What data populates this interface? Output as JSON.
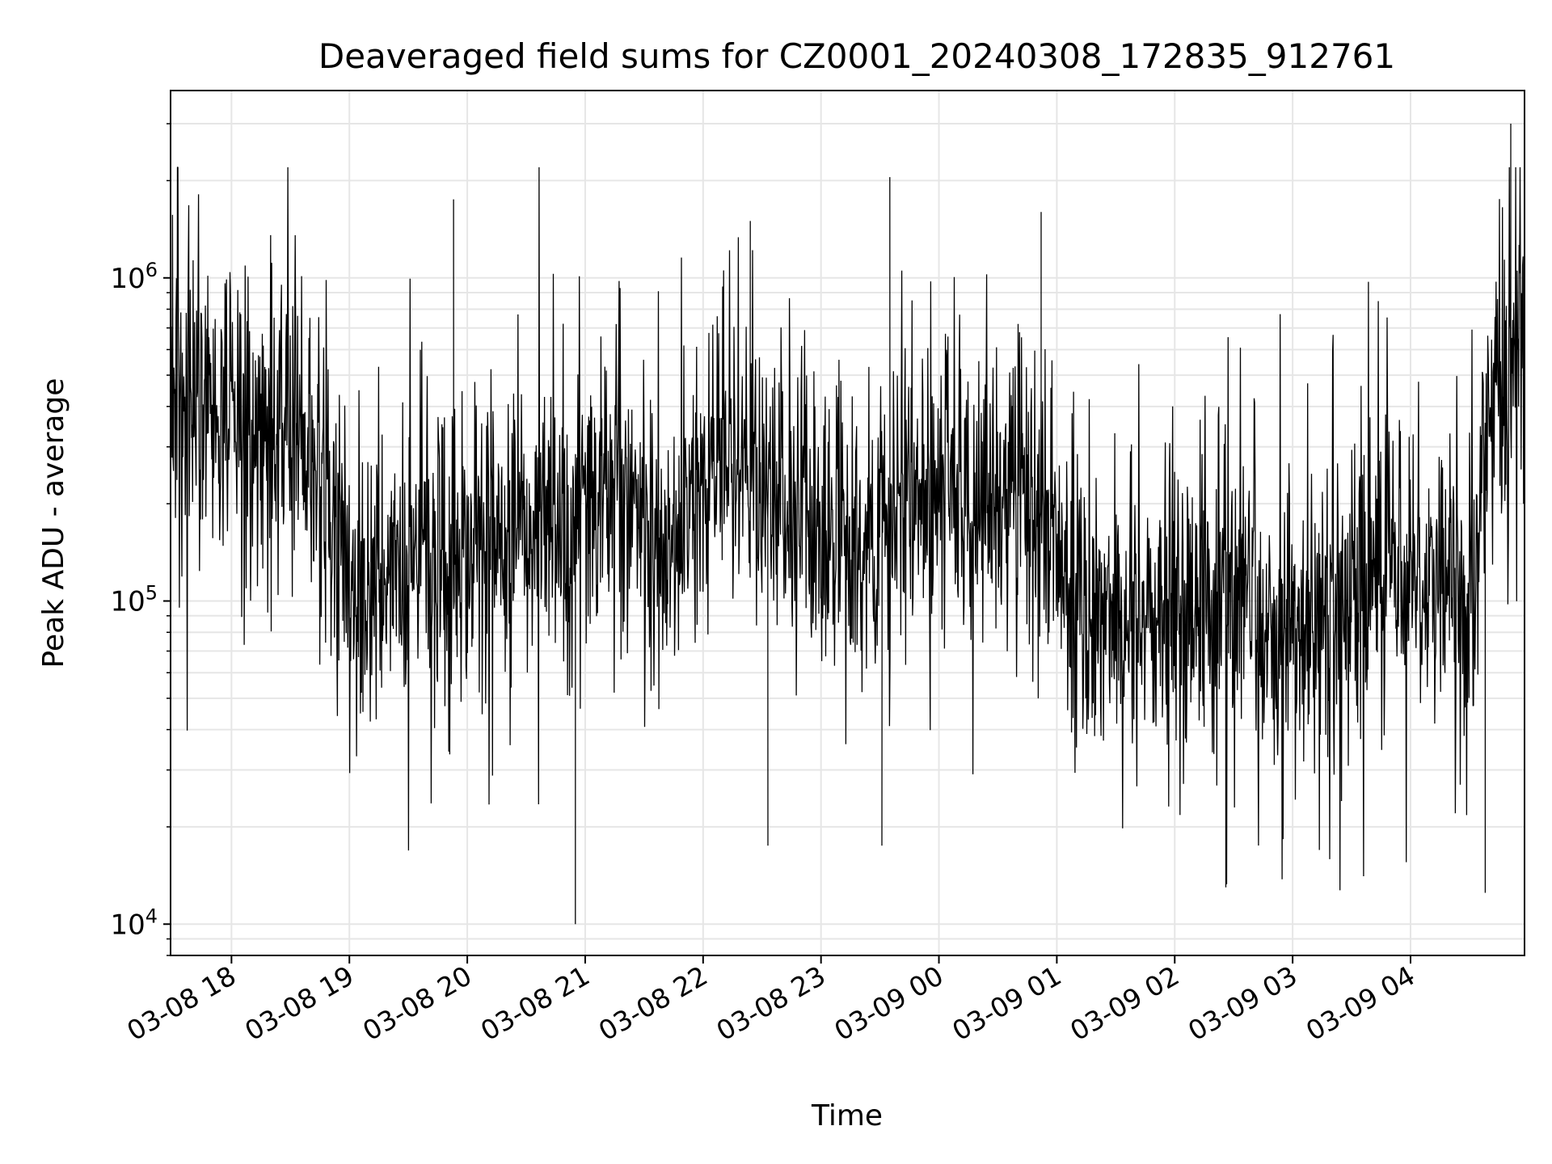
{
  "chart_data": {
    "type": "line",
    "title": "Deaveraged field sums for CZ0001_20240308_172835_912761",
    "xlabel": "Time",
    "ylabel": "Peak ADU - average",
    "yscale": "log",
    "xlim": [
      "2024-03-08 17:29",
      "2024-03-09 04:58"
    ],
    "ylim": [
      8000,
      3800000
    ],
    "x_tick_labels": [
      "03-08 18",
      "03-08 19",
      "03-08 20",
      "03-08 21",
      "03-08 22",
      "03-08 23",
      "03-09 00",
      "03-09 01",
      "03-09 02",
      "03-09 03",
      "03-09 04"
    ],
    "x_tick_hours": [
      18,
      19,
      20,
      21,
      22,
      23,
      24,
      25,
      26,
      27,
      28
    ],
    "y_ticks": [
      {
        "value": 10000,
        "base": "10",
        "exp": "4"
      },
      {
        "value": 100000,
        "base": "10",
        "exp": "5"
      },
      {
        "value": 1000000,
        "base": "10",
        "exp": "6"
      }
    ],
    "grid": true,
    "line_color": "#000000",
    "series": [
      {
        "x_start": "2024-03-08 17:29",
        "x_end": "2024-03-09 04:58",
        "point_count": 2760,
        "profile_hours": [
          17.48,
          17.8,
          18.2,
          18.6,
          19.0,
          19.6,
          20.2,
          20.9,
          21.3,
          21.7,
          22.1,
          22.4,
          22.8,
          23.3,
          23.8,
          24.2,
          24.7,
          25.1,
          25.6,
          26.1,
          26.5,
          27.0,
          27.5,
          27.9,
          28.2,
          28.5,
          28.7,
          28.98
        ],
        "typical_values": [
          380000,
          420000,
          330000,
          330000,
          120000,
          130000,
          150000,
          180000,
          240000,
          120000,
          320000,
          260000,
          180000,
          130000,
          230000,
          180000,
          260000,
          110000,
          85000,
          90000,
          95000,
          75000,
          110000,
          150000,
          115000,
          95000,
          450000,
          600000
        ],
        "spikes": [
          {
            "time": "2024-03-08 20:55",
            "value": 10000
          },
          {
            "time": "2024-03-08 19:53",
            "value": 1750000
          },
          {
            "time": "2024-03-08 22:24",
            "value": 1500000
          },
          {
            "time": "2024-03-08 22:33",
            "value": 17500
          },
          {
            "time": "2024-03-08 23:31",
            "value": 17500
          },
          {
            "time": "2024-03-08 23:35",
            "value": 2050000
          },
          {
            "time": "2024-03-09 00:52",
            "value": 1600000
          },
          {
            "time": "2024-03-09 02:26",
            "value": 13000
          },
          {
            "time": "2024-03-09 04:38",
            "value": 12500
          },
          {
            "time": "2024-03-09 04:51",
            "value": 3000000
          }
        ]
      }
    ]
  }
}
